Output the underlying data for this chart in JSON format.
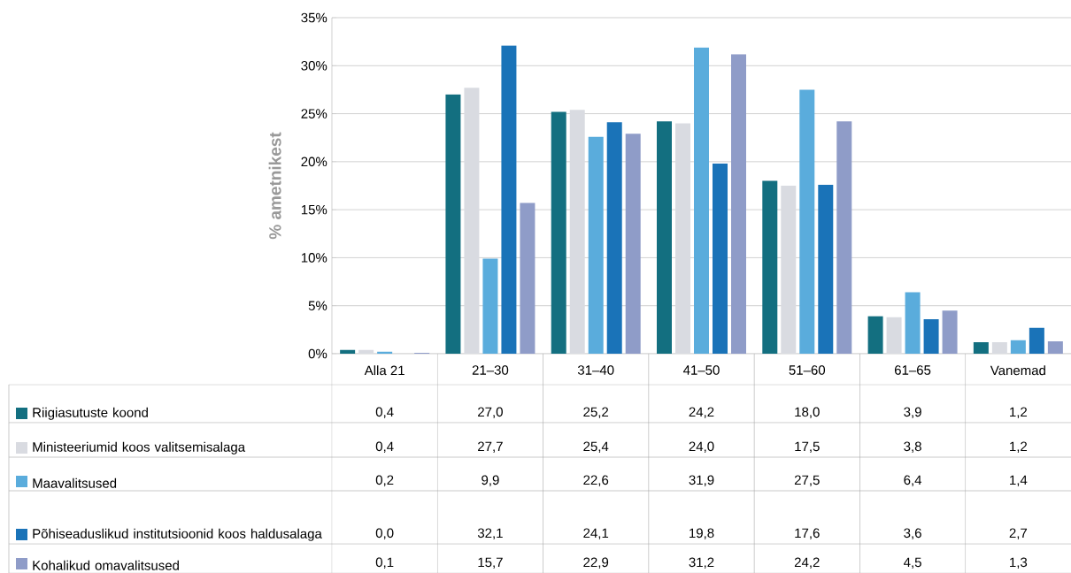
{
  "chart_data": {
    "type": "bar",
    "ylabel": "% ametnikest",
    "categories": [
      "Alla 21",
      "21–30",
      "31–40",
      "41–50",
      "51–60",
      "61–65",
      "Vanemad"
    ],
    "series": [
      {
        "name": "Riigiasutuste koond",
        "color": "#136f80",
        "values": [
          0.4,
          27.0,
          25.2,
          24.2,
          18.0,
          3.9,
          1.2
        ],
        "value_labels": [
          "0,4",
          "27,0",
          "25,2",
          "24,2",
          "18,0",
          "3,9",
          "1,2"
        ]
      },
      {
        "name": "Ministeeriumid koos valitsemisalaga",
        "color": "#d9dbe1",
        "values": [
          0.4,
          27.7,
          25.4,
          24.0,
          17.5,
          3.8,
          1.2
        ],
        "value_labels": [
          "0,4",
          "27,7",
          "25,4",
          "24,0",
          "17,5",
          "3,8",
          "1,2"
        ]
      },
      {
        "name": "Maavalitsused",
        "color": "#5aacdc",
        "values": [
          0.2,
          9.9,
          22.6,
          31.9,
          27.5,
          6.4,
          1.4
        ],
        "value_labels": [
          "0,2",
          "9,9",
          "22,6",
          "31,9",
          "27,5",
          "6,4",
          "1,4"
        ]
      },
      {
        "name": "Põhiseaduslikud institutsioonid koos haldusalaga",
        "color": "#1a73b8",
        "values": [
          0.0,
          32.1,
          24.1,
          19.8,
          17.6,
          3.6,
          2.7
        ],
        "value_labels": [
          "0,0",
          "32,1",
          "24,1",
          "19,8",
          "17,6",
          "3,6",
          "2,7"
        ]
      },
      {
        "name": "Kohalikud omavalitsused",
        "color": "#8f9cc8",
        "values": [
          0.1,
          15.7,
          22.9,
          31.2,
          24.2,
          4.5,
          1.3
        ],
        "value_labels": [
          "0,1",
          "15,7",
          "22,9",
          "31,2",
          "24,2",
          "4,5",
          "1,3"
        ]
      }
    ],
    "ylim": [
      0,
      35
    ],
    "yticks": [
      {
        "value": 0,
        "label": "0%"
      },
      {
        "value": 5,
        "label": "5%"
      },
      {
        "value": 10,
        "label": "10%"
      },
      {
        "value": 15,
        "label": "15%"
      },
      {
        "value": 20,
        "label": "20%"
      },
      {
        "value": 25,
        "label": "25%"
      },
      {
        "value": 30,
        "label": "30%"
      },
      {
        "value": 35,
        "label": "35%"
      }
    ],
    "grid": "y",
    "legend": "bottom"
  }
}
